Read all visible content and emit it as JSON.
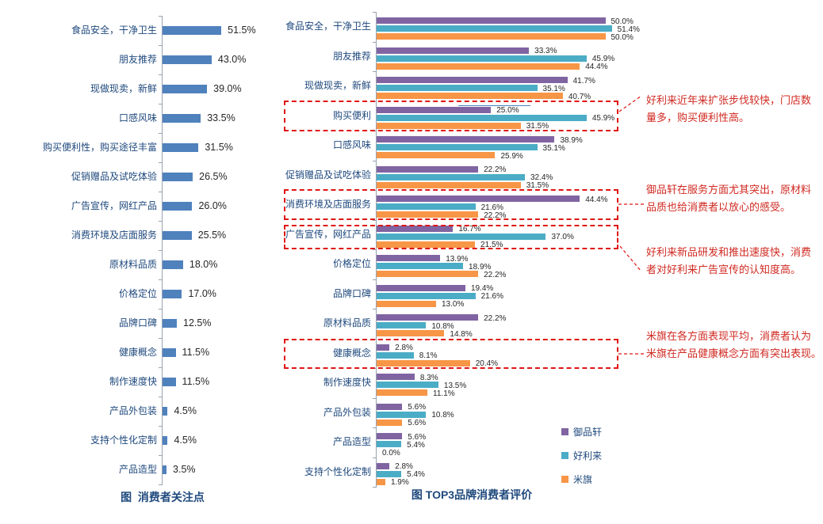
{
  "chart_data": [
    {
      "type": "bar",
      "orientation": "horizontal",
      "title": "图  消费者关注点",
      "bar_color": "#4F81BD",
      "xlim": [
        0,
        55
      ],
      "grid": false,
      "categories": [
        "食品安全，干净卫生",
        "朋友推荐",
        "现做现卖，新鲜",
        "口感风味",
        "购买便利性，购买途径丰富",
        "促销赠品及试吃体验",
        "广告宣传，网红产品",
        "消费环境及店面服务",
        "原材料品质",
        "价格定位",
        "品牌口碑",
        "健康概念",
        "制作速度快",
        "产品外包装",
        "支持个性化定制",
        "产品造型"
      ],
      "values": [
        51.5,
        43.0,
        39.0,
        33.5,
        31.5,
        26.5,
        26.0,
        25.5,
        18.0,
        17.0,
        12.5,
        11.5,
        11.5,
        4.5,
        4.5,
        3.5
      ],
      "value_labels": [
        "51.5%",
        "43.0%",
        "39.0%",
        "33.5%",
        "31.5%",
        "26.5%",
        "26.0%",
        "25.5%",
        "18.0%",
        "17.0%",
        "12.5%",
        "11.5%",
        "11.5%",
        "4.5%",
        "4.5%",
        "3.5%"
      ]
    },
    {
      "type": "bar",
      "orientation": "horizontal",
      "title": "图 TOP3品牌消费者评价",
      "xlim": [
        0,
        55
      ],
      "grid": false,
      "legend_position": "right-bottom",
      "categories": [
        "食品安全，干净卫生",
        "朋友推荐",
        "现做现卖，新鲜",
        "购买便利",
        "口感风味",
        "促销赠品及试吃体验",
        "消费环境及店面服务",
        "广告宣传，网红产品",
        "价格定位",
        "品牌口碑",
        "原材料品质",
        "健康概念",
        "制作速度快",
        "产品外包装",
        "产品造型",
        "支持个性化定制"
      ],
      "series": [
        {
          "name": "御品轩",
          "color": "#8064A2",
          "values": [
            50.0,
            33.3,
            41.7,
            25.0,
            38.9,
            22.2,
            44.4,
            16.7,
            13.9,
            19.4,
            22.2,
            2.8,
            8.3,
            5.6,
            5.6,
            2.8
          ],
          "value_labels": [
            "50.0%",
            "33.3%",
            "41.7%",
            "25.0%",
            "38.9%",
            "22.2%",
            "44.4%",
            "16.7%",
            "13.9%",
            "19.4%",
            "22.2%",
            "2.8%",
            "8.3%",
            "5.6%",
            "5.6%",
            "2.8%"
          ]
        },
        {
          "name": "好利来",
          "color": "#4BACC6",
          "values": [
            51.4,
            45.9,
            35.1,
            45.9,
            35.1,
            32.4,
            21.6,
            37.0,
            18.9,
            21.6,
            10.8,
            8.1,
            13.5,
            10.8,
            5.4,
            5.4
          ],
          "value_labels": [
            "51.4%",
            "45.9%",
            "35.1%",
            "45.9%",
            "35.1%",
            "32.4%",
            "21.6%",
            "37.0%",
            "18.9%",
            "21.6%",
            "10.8%",
            "8.1%",
            "13.5%",
            "10.8%",
            "5.4%",
            "5.4%"
          ]
        },
        {
          "name": "米旗",
          "color": "#F79646",
          "values": [
            50.0,
            44.4,
            40.7,
            31.5,
            25.9,
            31.5,
            22.2,
            21.5,
            22.2,
            13.0,
            14.8,
            20.4,
            11.1,
            5.6,
            0.0,
            1.9
          ],
          "value_labels": [
            "50.0%",
            "44.4%",
            "40.7%",
            "31.5%",
            "25.9%",
            "31.5%",
            "22.2%",
            "21.5%",
            "22.2%",
            "13.0%",
            "14.8%",
            "20.4%",
            "11.1%",
            "5.6%",
            "0.0%",
            "1.9%"
          ]
        }
      ],
      "highlighted_category_indices": [
        3,
        6,
        7,
        11
      ]
    }
  ],
  "annotations": [
    {
      "target": "购买便利",
      "lines": [
        "好利来近年来扩张步伐较快，门店数",
        "量多，购买便利性高。"
      ],
      "text": "好利来近年来扩张步伐较快，门店数量多，购买便利性高。"
    },
    {
      "target": "消费环境及店面服务",
      "lines": [
        "御品轩在服务方面尤其突出，原材料",
        "品质也给消费者以放心的感受。"
      ],
      "text": "御品轩在服务方面尤其突出，原材料品质也给消费者以放心的感受。"
    },
    {
      "target": "广告宣传，网红产品",
      "lines": [
        "好利来新品研发和推出速度快，消费",
        "者对好利来广告宣传的认知度高。"
      ],
      "text": "好利来新品研发和推出速度快，消费者对好利来广告宣传的认知度高。"
    },
    {
      "target": "健康概念",
      "lines": [
        "米旗在各方面表现平均，消费者认为",
        "米旗在产品健康概念方面有突出表现。"
      ],
      "text": "米旗在各方面表现平均，消费者认为米旗在产品健康概念方面有突出表现。"
    }
  ],
  "colors": {
    "left_bar": "#4F81BD",
    "series_purple": "#8064A2",
    "series_teal": "#4BACC6",
    "series_orange": "#F79646",
    "label_blue": "#1F497D",
    "annotation_red": "#d02a22",
    "highlight_box_red": "#e01414"
  }
}
